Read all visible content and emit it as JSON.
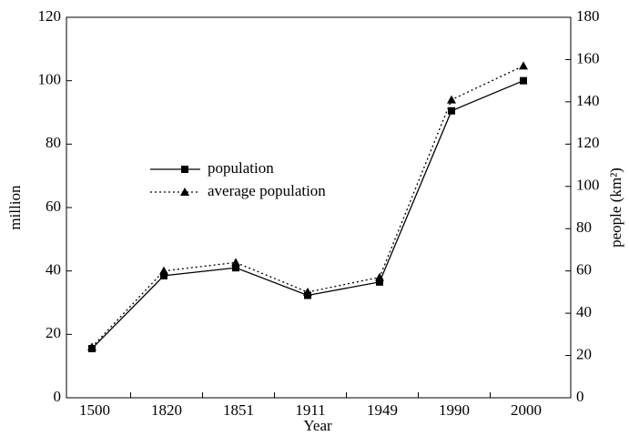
{
  "chart_data": {
    "type": "line",
    "categories": [
      "1500",
      "1820",
      "1851",
      "1911",
      "1949",
      "1990",
      "2000"
    ],
    "series": [
      {
        "name": "population",
        "color": "#000000",
        "dash": "solid",
        "marker": "square",
        "axis": "y",
        "values": [
          15.5,
          38.5,
          41,
          32.3,
          36.5,
          90.5,
          100
        ]
      },
      {
        "name": "average population",
        "color": "#000000",
        "dash": "dotted",
        "marker": "triangle",
        "axis": "y2",
        "values": [
          24,
          60,
          64,
          50,
          57,
          141,
          157
        ]
      }
    ],
    "xlabel": "Year",
    "ylabel": "million",
    "y2label": "people (km²)",
    "ylim": [
      0,
      120
    ],
    "yticks": [
      0,
      20,
      40,
      60,
      80,
      100,
      120
    ],
    "y2lim": [
      0,
      180
    ],
    "y2ticks": [
      0,
      20,
      40,
      60,
      80,
      100,
      120,
      140,
      160,
      180
    ],
    "legend": "center left",
    "grid": false
  }
}
